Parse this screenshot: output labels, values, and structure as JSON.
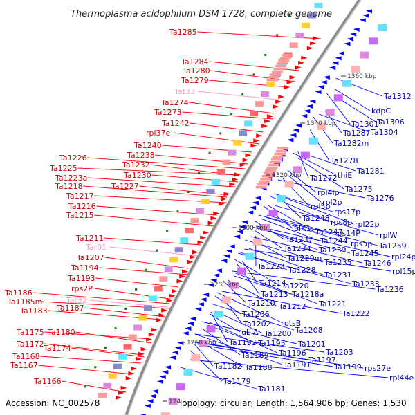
{
  "title": "Thermoplasma acidophilum DSM 1728, complete genome",
  "footer": {
    "accession": "Accession: NC_002578",
    "summary": "Topology: circular; Length: 1,564,906 bp; Genes: 1,530"
  },
  "colors": {
    "background": "#ffffff",
    "backbone": "#8c8c8c",
    "left_label": "#cc0000",
    "left_leader": "#ff0000",
    "right_label": "#0000aa",
    "right_leader": "#0000ff",
    "rna_label": "#ff99cc",
    "forward_arrow": "#ff0000",
    "reverse_arrow": "#0000ff",
    "tick": "#117711"
  },
  "kbp_ticks": [
    "1360 kbp",
    "1340 kbp",
    "1320 kbp",
    "1300 kbp",
    "1280 kbp",
    "1260 kbp",
    "124"
  ],
  "left_labels": [
    {
      "text": "Ta1285",
      "kind": "gene"
    },
    {
      "text": "Ta1284",
      "kind": "gene"
    },
    {
      "text": "Ta1280",
      "kind": "gene"
    },
    {
      "text": "Ta1279",
      "kind": "gene"
    },
    {
      "text": "Tat33",
      "kind": "rna"
    },
    {
      "text": "Ta1274",
      "kind": "gene"
    },
    {
      "text": "Ta1273",
      "kind": "gene"
    },
    {
      "text": "Ta1242",
      "kind": "gene"
    },
    {
      "text": "rpl37e",
      "kind": "gene"
    },
    {
      "text": "Ta1240",
      "kind": "gene"
    },
    {
      "text": "Ta1238",
      "kind": "gene"
    },
    {
      "text": "Ta1232",
      "kind": "gene"
    },
    {
      "text": "Ta1230",
      "kind": "gene"
    },
    {
      "text": "Ta1227",
      "kind": "gene"
    },
    {
      "text": "Ta1226",
      "kind": "gene"
    },
    {
      "text": "Ta1225",
      "kind": "gene"
    },
    {
      "text": "Ta1223a",
      "kind": "gene"
    },
    {
      "text": "Ta1218",
      "kind": "gene"
    },
    {
      "text": "Ta1217",
      "kind": "gene"
    },
    {
      "text": "Ta1216",
      "kind": "gene"
    },
    {
      "text": "Ta1215",
      "kind": "gene"
    },
    {
      "text": "Ta1211",
      "kind": "gene"
    },
    {
      "text": "Tar01",
      "kind": "rna"
    },
    {
      "text": "Ta1207",
      "kind": "gene"
    },
    {
      "text": "Ta1194",
      "kind": "gene"
    },
    {
      "text": "Ta1193",
      "kind": "gene"
    },
    {
      "text": "rps2P",
      "kind": "gene"
    },
    {
      "text": "Tat32",
      "kind": "rna"
    },
    {
      "text": "Ta1187",
      "kind": "gene"
    },
    {
      "text": "Ta1186",
      "kind": "gene"
    },
    {
      "text": "Ta1185m",
      "kind": "gene"
    },
    {
      "text": "Ta1183",
      "kind": "gene"
    },
    {
      "text": "Ta1180",
      "kind": "gene"
    },
    {
      "text": "Ta1175",
      "kind": "gene"
    },
    {
      "text": "Ta1174",
      "kind": "gene"
    },
    {
      "text": "Ta1172",
      "kind": "gene"
    },
    {
      "text": "Ta1168",
      "kind": "gene"
    },
    {
      "text": "Ta1167",
      "kind": "gene"
    },
    {
      "text": "Ta1166",
      "kind": "gene"
    }
  ],
  "right_labels": [
    {
      "text": "Ta1312"
    },
    {
      "text": "kdpC"
    },
    {
      "text": "Ta1306"
    },
    {
      "text": "Ta1301"
    },
    {
      "text": "Ta1304"
    },
    {
      "text": "Ta1287"
    },
    {
      "text": "Ta1282m"
    },
    {
      "text": "Ta1278"
    },
    {
      "text": "Ta1281"
    },
    {
      "text": "thiE"
    },
    {
      "text": "Ta1272"
    },
    {
      "text": "Ta1275"
    },
    {
      "text": "Ta1276"
    },
    {
      "text": "rpl4lp"
    },
    {
      "text": "rpl2p"
    },
    {
      "text": "rpl5p"
    },
    {
      "text": "rps17p"
    },
    {
      "text": "Ta1248"
    },
    {
      "text": "rps8p"
    },
    {
      "text": "rpl22p"
    },
    {
      "text": "rps14P"
    },
    {
      "text": "SlK1"
    },
    {
      "text": "Ta1247"
    },
    {
      "text": "rplW"
    },
    {
      "text": "Ta1237"
    },
    {
      "text": "Ta1244"
    },
    {
      "text": "rps5p"
    },
    {
      "text": "Ta1259"
    },
    {
      "text": "Ta1234"
    },
    {
      "text": "Ta1239"
    },
    {
      "text": "Ta1245"
    },
    {
      "text": "rpl24p"
    },
    {
      "text": "Ta1229m"
    },
    {
      "text": "Ta1235"
    },
    {
      "text": "Ta1246"
    },
    {
      "text": "Ta1223"
    },
    {
      "text": "Ta1228"
    },
    {
      "text": "rpl15p"
    },
    {
      "text": "Ta1231"
    },
    {
      "text": "Ta1233"
    },
    {
      "text": "Ta1236"
    },
    {
      "text": "Ta1214"
    },
    {
      "text": "Ta1220"
    },
    {
      "text": "Ta1213"
    },
    {
      "text": "Ta1218a"
    },
    {
      "text": "Ta1210"
    },
    {
      "text": "Ta1212"
    },
    {
      "text": "Ta1221"
    },
    {
      "text": "Ta1206"
    },
    {
      "text": "Ta1222"
    },
    {
      "text": "Ta1202"
    },
    {
      "text": "otsB"
    },
    {
      "text": "ubiA"
    },
    {
      "text": "Ta1200"
    },
    {
      "text": "Ta1208"
    },
    {
      "text": "Ta1192"
    },
    {
      "text": "Ta1195"
    },
    {
      "text": "Ta1201"
    },
    {
      "text": "Ta1189"
    },
    {
      "text": "Ta1196"
    },
    {
      "text": "Ta1203"
    },
    {
      "text": "Ta1182"
    },
    {
      "text": "Ta1188"
    },
    {
      "text": "Ta1191"
    },
    {
      "text": "Ta1197"
    },
    {
      "text": "Ta1199"
    },
    {
      "text": "rps27e"
    },
    {
      "text": "Ta1179"
    },
    {
      "text": "rpl44e"
    },
    {
      "text": "Ta1181"
    }
  ]
}
